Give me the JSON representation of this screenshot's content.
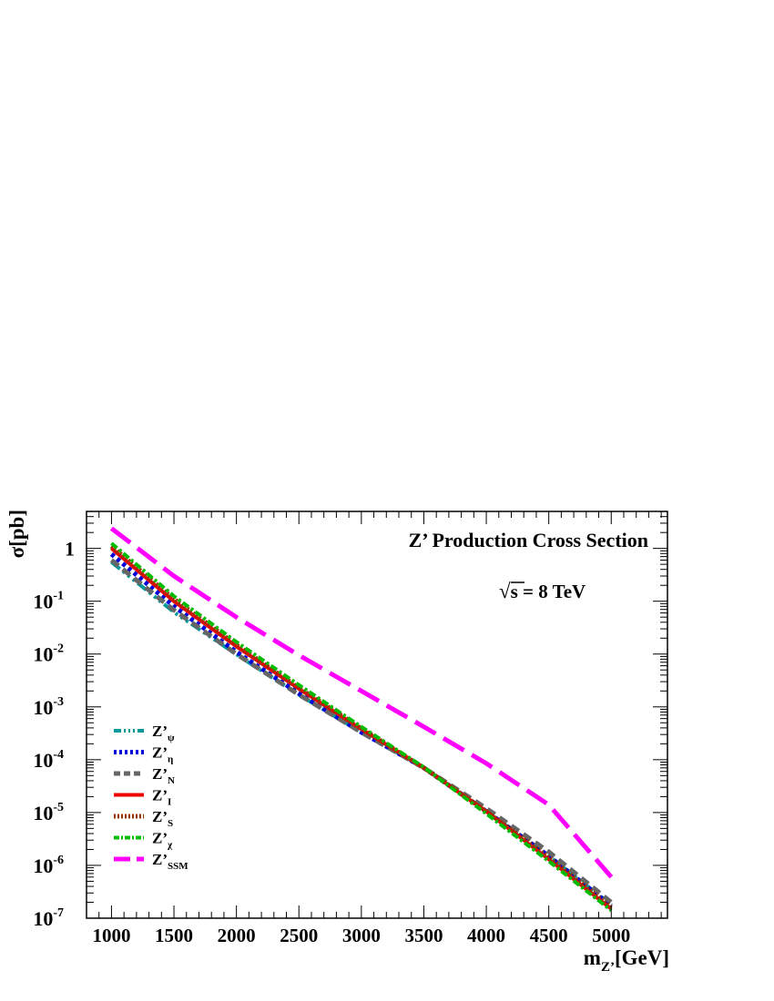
{
  "chart_data": {
    "type": "line",
    "title": "Z’ Production Cross Section",
    "annotation": "s = 8 TeV",
    "annotation_root": "√",
    "xlabel": "m",
    "xlabel_sub": "Z’",
    "xlabel_unit": "[GeV]",
    "ylabel": "σ[pb]",
    "xlim": [
      800,
      5450
    ],
    "ylim_log10": [
      -7,
      0.7
    ],
    "y_scale": "log",
    "grid": false,
    "legend_position": "bottom-left",
    "x_ticks": [
      {
        "value": 1000,
        "label": "1000"
      },
      {
        "value": 1500,
        "label": "1500"
      },
      {
        "value": 2000,
        "label": "2000"
      },
      {
        "value": 2500,
        "label": "2500"
      },
      {
        "value": 3000,
        "label": "3000"
      },
      {
        "value": 3500,
        "label": "3500"
      },
      {
        "value": 4000,
        "label": "4000"
      },
      {
        "value": 4500,
        "label": "4500"
      },
      {
        "value": 5000,
        "label": "5000"
      }
    ],
    "y_ticks": [
      {
        "exp": 0,
        "base": "1",
        "sup": ""
      },
      {
        "exp": -1,
        "base": "10",
        "sup": "-1"
      },
      {
        "exp": -2,
        "base": "10",
        "sup": "-2"
      },
      {
        "exp": -3,
        "base": "10",
        "sup": "-3"
      },
      {
        "exp": -4,
        "base": "10",
        "sup": "-4"
      },
      {
        "exp": -5,
        "base": "10",
        "sup": "-5"
      },
      {
        "exp": -6,
        "base": "10",
        "sup": "-6"
      },
      {
        "exp": -7,
        "base": "10",
        "sup": "-7"
      }
    ],
    "x": [
      1000,
      1500,
      2000,
      2500,
      3000,
      3500,
      4000,
      4500,
      5000
    ],
    "series": [
      {
        "key": "psi",
        "label": "Z’",
        "sub": "ψ",
        "color": "#009999",
        "dash": "12 4 3 4 3 4 3 4",
        "width": 4,
        "values": [
          0.55,
          0.062,
          0.0098,
          0.0017,
          0.00033,
          7e-05,
          1.05e-05,
          1.5e-06,
          1.8e-07
        ]
      },
      {
        "key": "eta",
        "label": "Z’",
        "sub": "η",
        "color": "#0000dd",
        "dash": "4 4",
        "width": 5,
        "values": [
          0.78,
          0.08,
          0.011,
          0.0018,
          0.00033,
          7e-05,
          1.05e-05,
          1.5e-06,
          1.7e-07
        ]
      },
      {
        "key": "N",
        "label": "Z’",
        "sub": "N",
        "color": "#666666",
        "dash": "10 6",
        "width": 5,
        "values": [
          0.6,
          0.068,
          0.01,
          0.0017,
          0.00033,
          7e-05,
          1.2e-05,
          1.8e-06,
          2e-07
        ]
      },
      {
        "key": "I",
        "label": "Z’",
        "sub": "I",
        "color": "#ee0000",
        "dash": "",
        "width": 4,
        "values": [
          1.0,
          0.1,
          0.014,
          0.0022,
          0.00038,
          7e-05,
          1.05e-05,
          1.3e-06,
          1.5e-07
        ]
      },
      {
        "key": "S",
        "label": "Z’",
        "sub": "S",
        "color": "#993300",
        "dash": "2 2",
        "width": 5,
        "values": [
          1.1,
          0.11,
          0.015,
          0.0023,
          0.00039,
          7e-05,
          1.05e-05,
          1.4e-06,
          1.6e-07
        ]
      },
      {
        "key": "chi",
        "label": "Z’",
        "sub": "χ",
        "color": "#00bb00",
        "dash": "8 3 3 3",
        "width": 4,
        "values": [
          1.25,
          0.125,
          0.017,
          0.0026,
          0.00042,
          7.2e-05,
          9.5e-06,
          1.2e-06,
          1.4e-07
        ]
      },
      {
        "key": "SSM",
        "label": "Z’",
        "sub": "SSM",
        "color": "#ff00ff",
        "dash": "26 10",
        "width": 5,
        "values": [
          2.4,
          0.3,
          0.05,
          0.0095,
          0.002,
          0.00042,
          8.5e-05,
          1.4e-05,
          6e-07
        ]
      }
    ]
  }
}
